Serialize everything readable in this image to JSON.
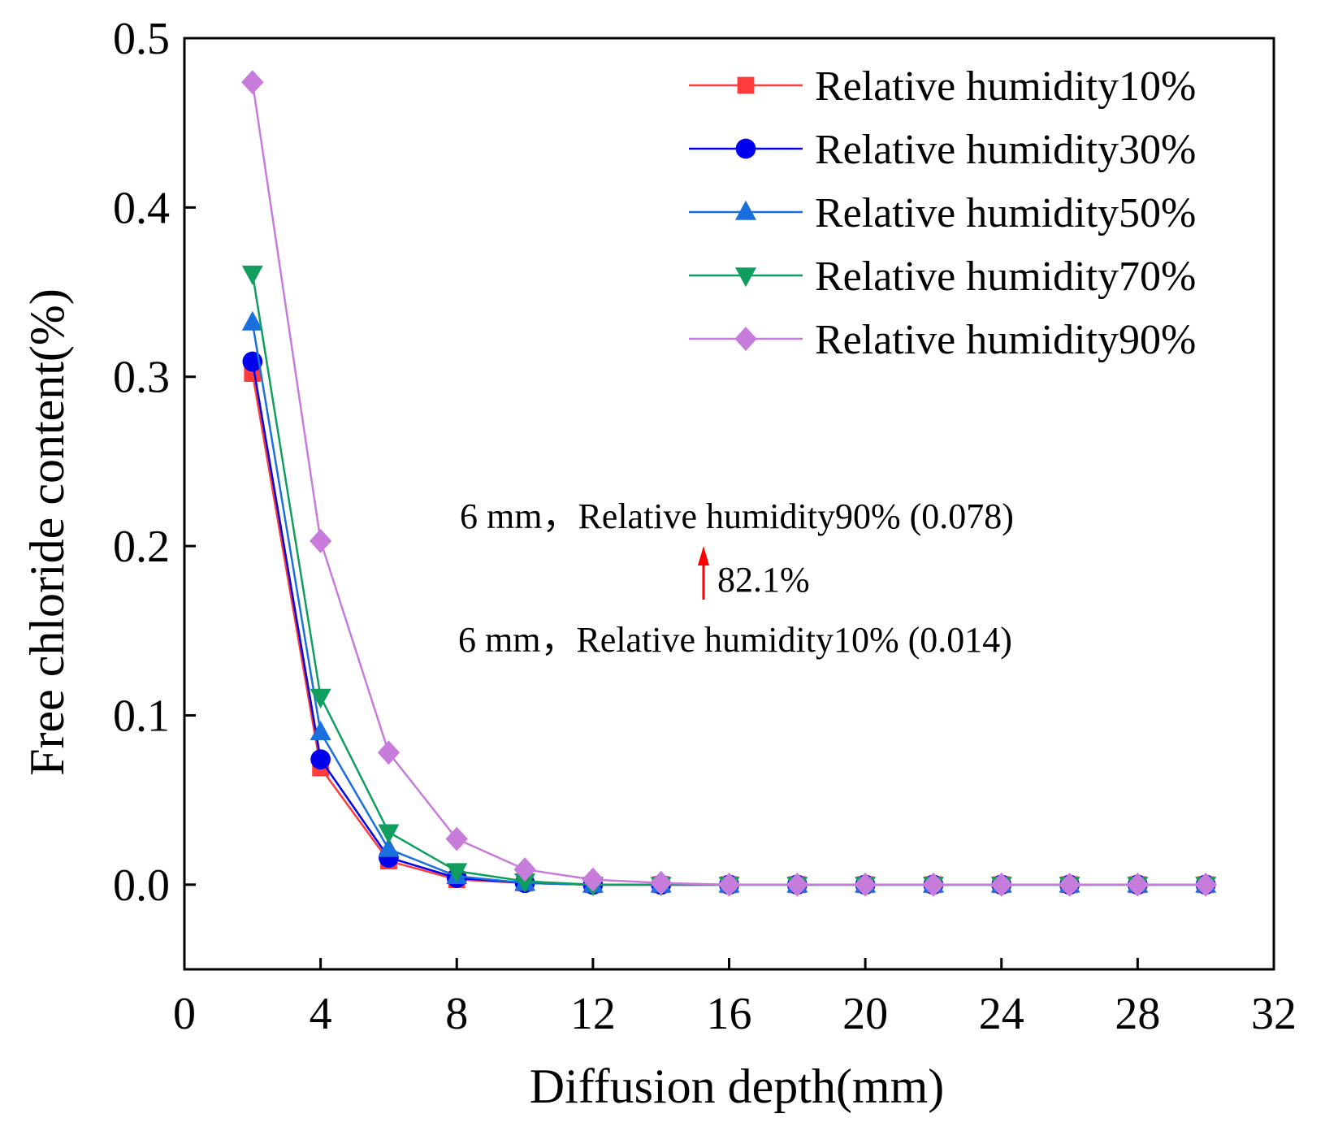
{
  "chart_data": {
    "type": "line",
    "title": "",
    "xlabel": "Diffusion depth(mm)",
    "ylabel": "Free chloride content(%)",
    "xlim": [
      0,
      32
    ],
    "ylim": [
      -0.05,
      0.5
    ],
    "xticks": [
      0,
      4,
      8,
      12,
      16,
      20,
      24,
      28,
      32
    ],
    "yticks": [
      0.0,
      0.1,
      0.2,
      0.3,
      0.4,
      0.5
    ],
    "ytick_labels": [
      "0.0",
      "0.1",
      "0.2",
      "0.3",
      "0.4",
      "0.5"
    ],
    "grid": false,
    "legend_position": "top-right",
    "x": [
      2,
      4,
      6,
      8,
      10,
      12,
      14,
      16,
      18,
      20,
      22,
      24,
      26,
      28,
      30
    ],
    "series": [
      {
        "name": "Relative humidity10%",
        "color": "#ff3b3b",
        "marker": "square",
        "values": [
          0.302,
          0.069,
          0.014,
          0.003,
          0.001,
          0.0,
          0.0,
          0.0,
          0.0,
          0.0,
          0.0,
          0.0,
          0.0,
          0.0,
          0.0
        ]
      },
      {
        "name": "Relative humidity30%",
        "color": "#0000ee",
        "marker": "circle",
        "values": [
          0.309,
          0.074,
          0.016,
          0.004,
          0.001,
          0.0,
          0.0,
          0.0,
          0.0,
          0.0,
          0.0,
          0.0,
          0.0,
          0.0,
          0.0
        ]
      },
      {
        "name": "Relative humidity50%",
        "color": "#1a6fdf",
        "marker": "triangle-up",
        "values": [
          0.332,
          0.09,
          0.021,
          0.005,
          0.001,
          0.0,
          0.0,
          0.0,
          0.0,
          0.0,
          0.0,
          0.0,
          0.0,
          0.0,
          0.0
        ]
      },
      {
        "name": "Relative humidity70%",
        "color": "#0f9e5e",
        "marker": "triangle-down",
        "values": [
          0.361,
          0.111,
          0.031,
          0.008,
          0.002,
          0.0,
          0.0,
          0.0,
          0.0,
          0.0,
          0.0,
          0.0,
          0.0,
          0.0,
          0.0
        ]
      },
      {
        "name": "Relative humidity90%",
        "color": "#c77cdb",
        "marker": "diamond",
        "values": [
          0.474,
          0.203,
          0.078,
          0.027,
          0.009,
          0.003,
          0.001,
          0.0,
          0.0,
          0.0,
          0.0,
          0.0,
          0.0,
          0.0,
          0.0
        ]
      }
    ],
    "annotations": {
      "upper_text": "6 mm，Relative humidity90% (0.078)",
      "arrow_label": "82.1%",
      "lower_text": "6 mm，Relative humidity10% (0.014)",
      "arrow_color": "#ff0000"
    }
  }
}
